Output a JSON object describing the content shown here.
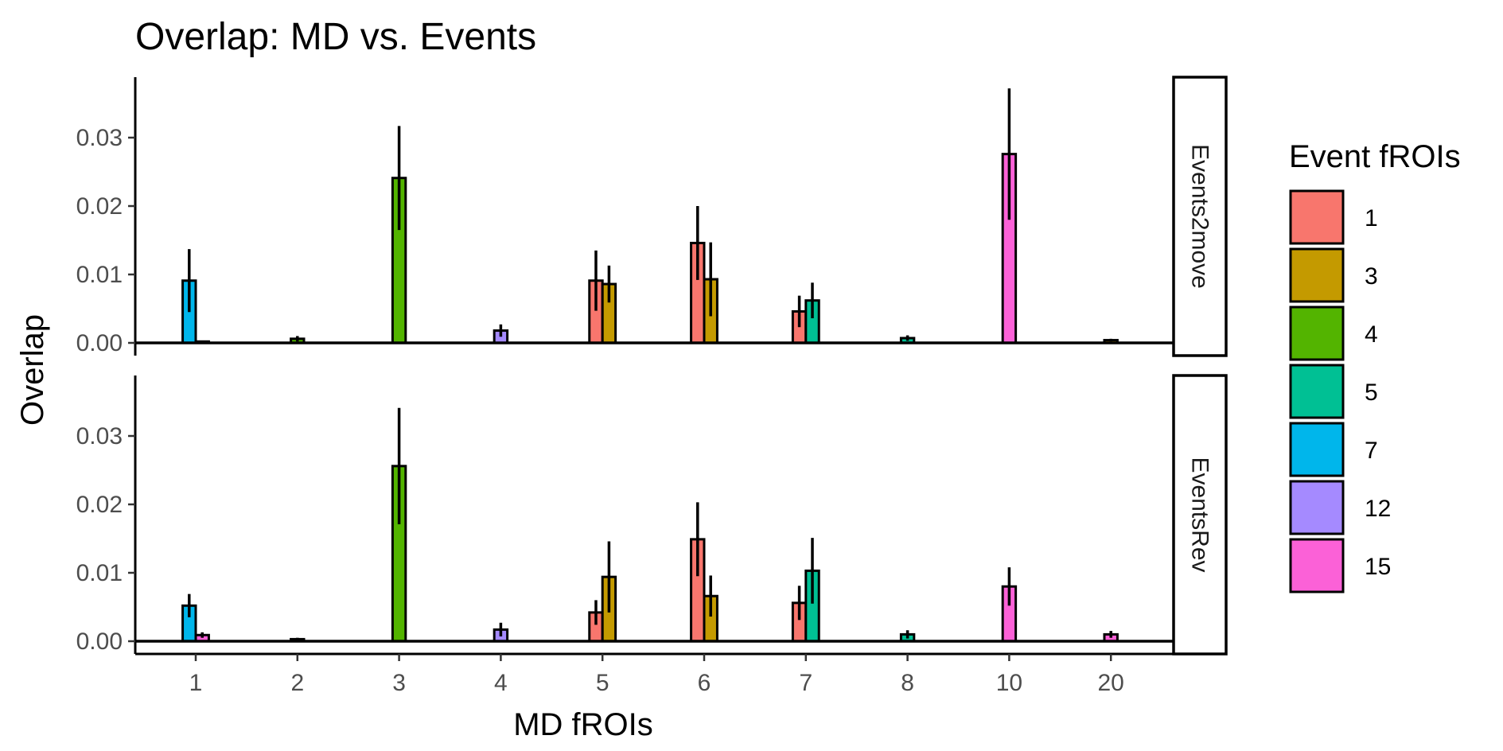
{
  "chart_data": {
    "type": "bar",
    "title": "Overlap: MD vs. Events",
    "xlabel": "MD fROIs",
    "ylabel": "Overlap",
    "categories": [
      "1",
      "2",
      "3",
      "4",
      "5",
      "6",
      "7",
      "8",
      "10",
      "20"
    ],
    "yticks": [
      "0.00",
      "0.01",
      "0.02",
      "0.03"
    ],
    "ylim": [
      -0.0011,
      0.039
    ],
    "legend": {
      "title": "Event fROIs",
      "position": "right",
      "entries": [
        {
          "label": "1",
          "color": "#F8766D"
        },
        {
          "label": "3",
          "color": "#C49A00"
        },
        {
          "label": "4",
          "color": "#53B400"
        },
        {
          "label": "5",
          "color": "#00C094"
        },
        {
          "label": "7",
          "color": "#00B6EB"
        },
        {
          "label": "12",
          "color": "#A58AFF"
        },
        {
          "label": "15",
          "color": "#FB61D7"
        }
      ]
    },
    "panels": [
      {
        "label": "Events2move",
        "bars": [
          {
            "md": "1",
            "event": "7",
            "value": 0.0091,
            "err": 0.0046
          },
          {
            "md": "1",
            "event": "15",
            "value": 0.0002,
            "err": 0.0001
          },
          {
            "md": "2",
            "event": "4",
            "value": 0.0006,
            "err": 0.0004
          },
          {
            "md": "3",
            "event": "4",
            "value": 0.0241,
            "err": 0.0076
          },
          {
            "md": "4",
            "event": "12",
            "value": 0.0018,
            "err": 0.0009
          },
          {
            "md": "5",
            "event": "1",
            "value": 0.0091,
            "err": 0.0044
          },
          {
            "md": "5",
            "event": "3",
            "value": 0.0086,
            "err": 0.0027
          },
          {
            "md": "6",
            "event": "1",
            "value": 0.0146,
            "err": 0.0054
          },
          {
            "md": "6",
            "event": "3",
            "value": 0.0093,
            "err": 0.0054
          },
          {
            "md": "7",
            "event": "1",
            "value": 0.0046,
            "err": 0.0023
          },
          {
            "md": "7",
            "event": "5",
            "value": 0.0062,
            "err": 0.0026
          },
          {
            "md": "8",
            "event": "5",
            "value": 0.0007,
            "err": 0.0004
          },
          {
            "md": "10",
            "event": "15",
            "value": 0.0276,
            "err": 0.0096
          },
          {
            "md": "20",
            "event": "3",
            "value": 0.0004,
            "err": 0.0002
          }
        ]
      },
      {
        "label": "EventsRev",
        "bars": [
          {
            "md": "1",
            "event": "7",
            "value": 0.0052,
            "err": 0.0017
          },
          {
            "md": "1",
            "event": "15",
            "value": 0.0009,
            "err": 0.0004
          },
          {
            "md": "2",
            "event": "4",
            "value": 0.0003,
            "err": 0.0002
          },
          {
            "md": "3",
            "event": "4",
            "value": 0.0256,
            "err": 0.0085
          },
          {
            "md": "4",
            "event": "12",
            "value": 0.0017,
            "err": 0.001
          },
          {
            "md": "5",
            "event": "1",
            "value": 0.0042,
            "err": 0.0018
          },
          {
            "md": "5",
            "event": "3",
            "value": 0.0094,
            "err": 0.0052
          },
          {
            "md": "6",
            "event": "1",
            "value": 0.0149,
            "err": 0.0054
          },
          {
            "md": "6",
            "event": "3",
            "value": 0.0066,
            "err": 0.003
          },
          {
            "md": "7",
            "event": "1",
            "value": 0.0056,
            "err": 0.0025
          },
          {
            "md": "7",
            "event": "5",
            "value": 0.0103,
            "err": 0.0048
          },
          {
            "md": "8",
            "event": "5",
            "value": 0.001,
            "err": 0.0006
          },
          {
            "md": "10",
            "event": "15",
            "value": 0.008,
            "err": 0.0028
          },
          {
            "md": "20",
            "event": "15",
            "value": 0.001,
            "err": 0.0005
          }
        ]
      }
    ]
  }
}
